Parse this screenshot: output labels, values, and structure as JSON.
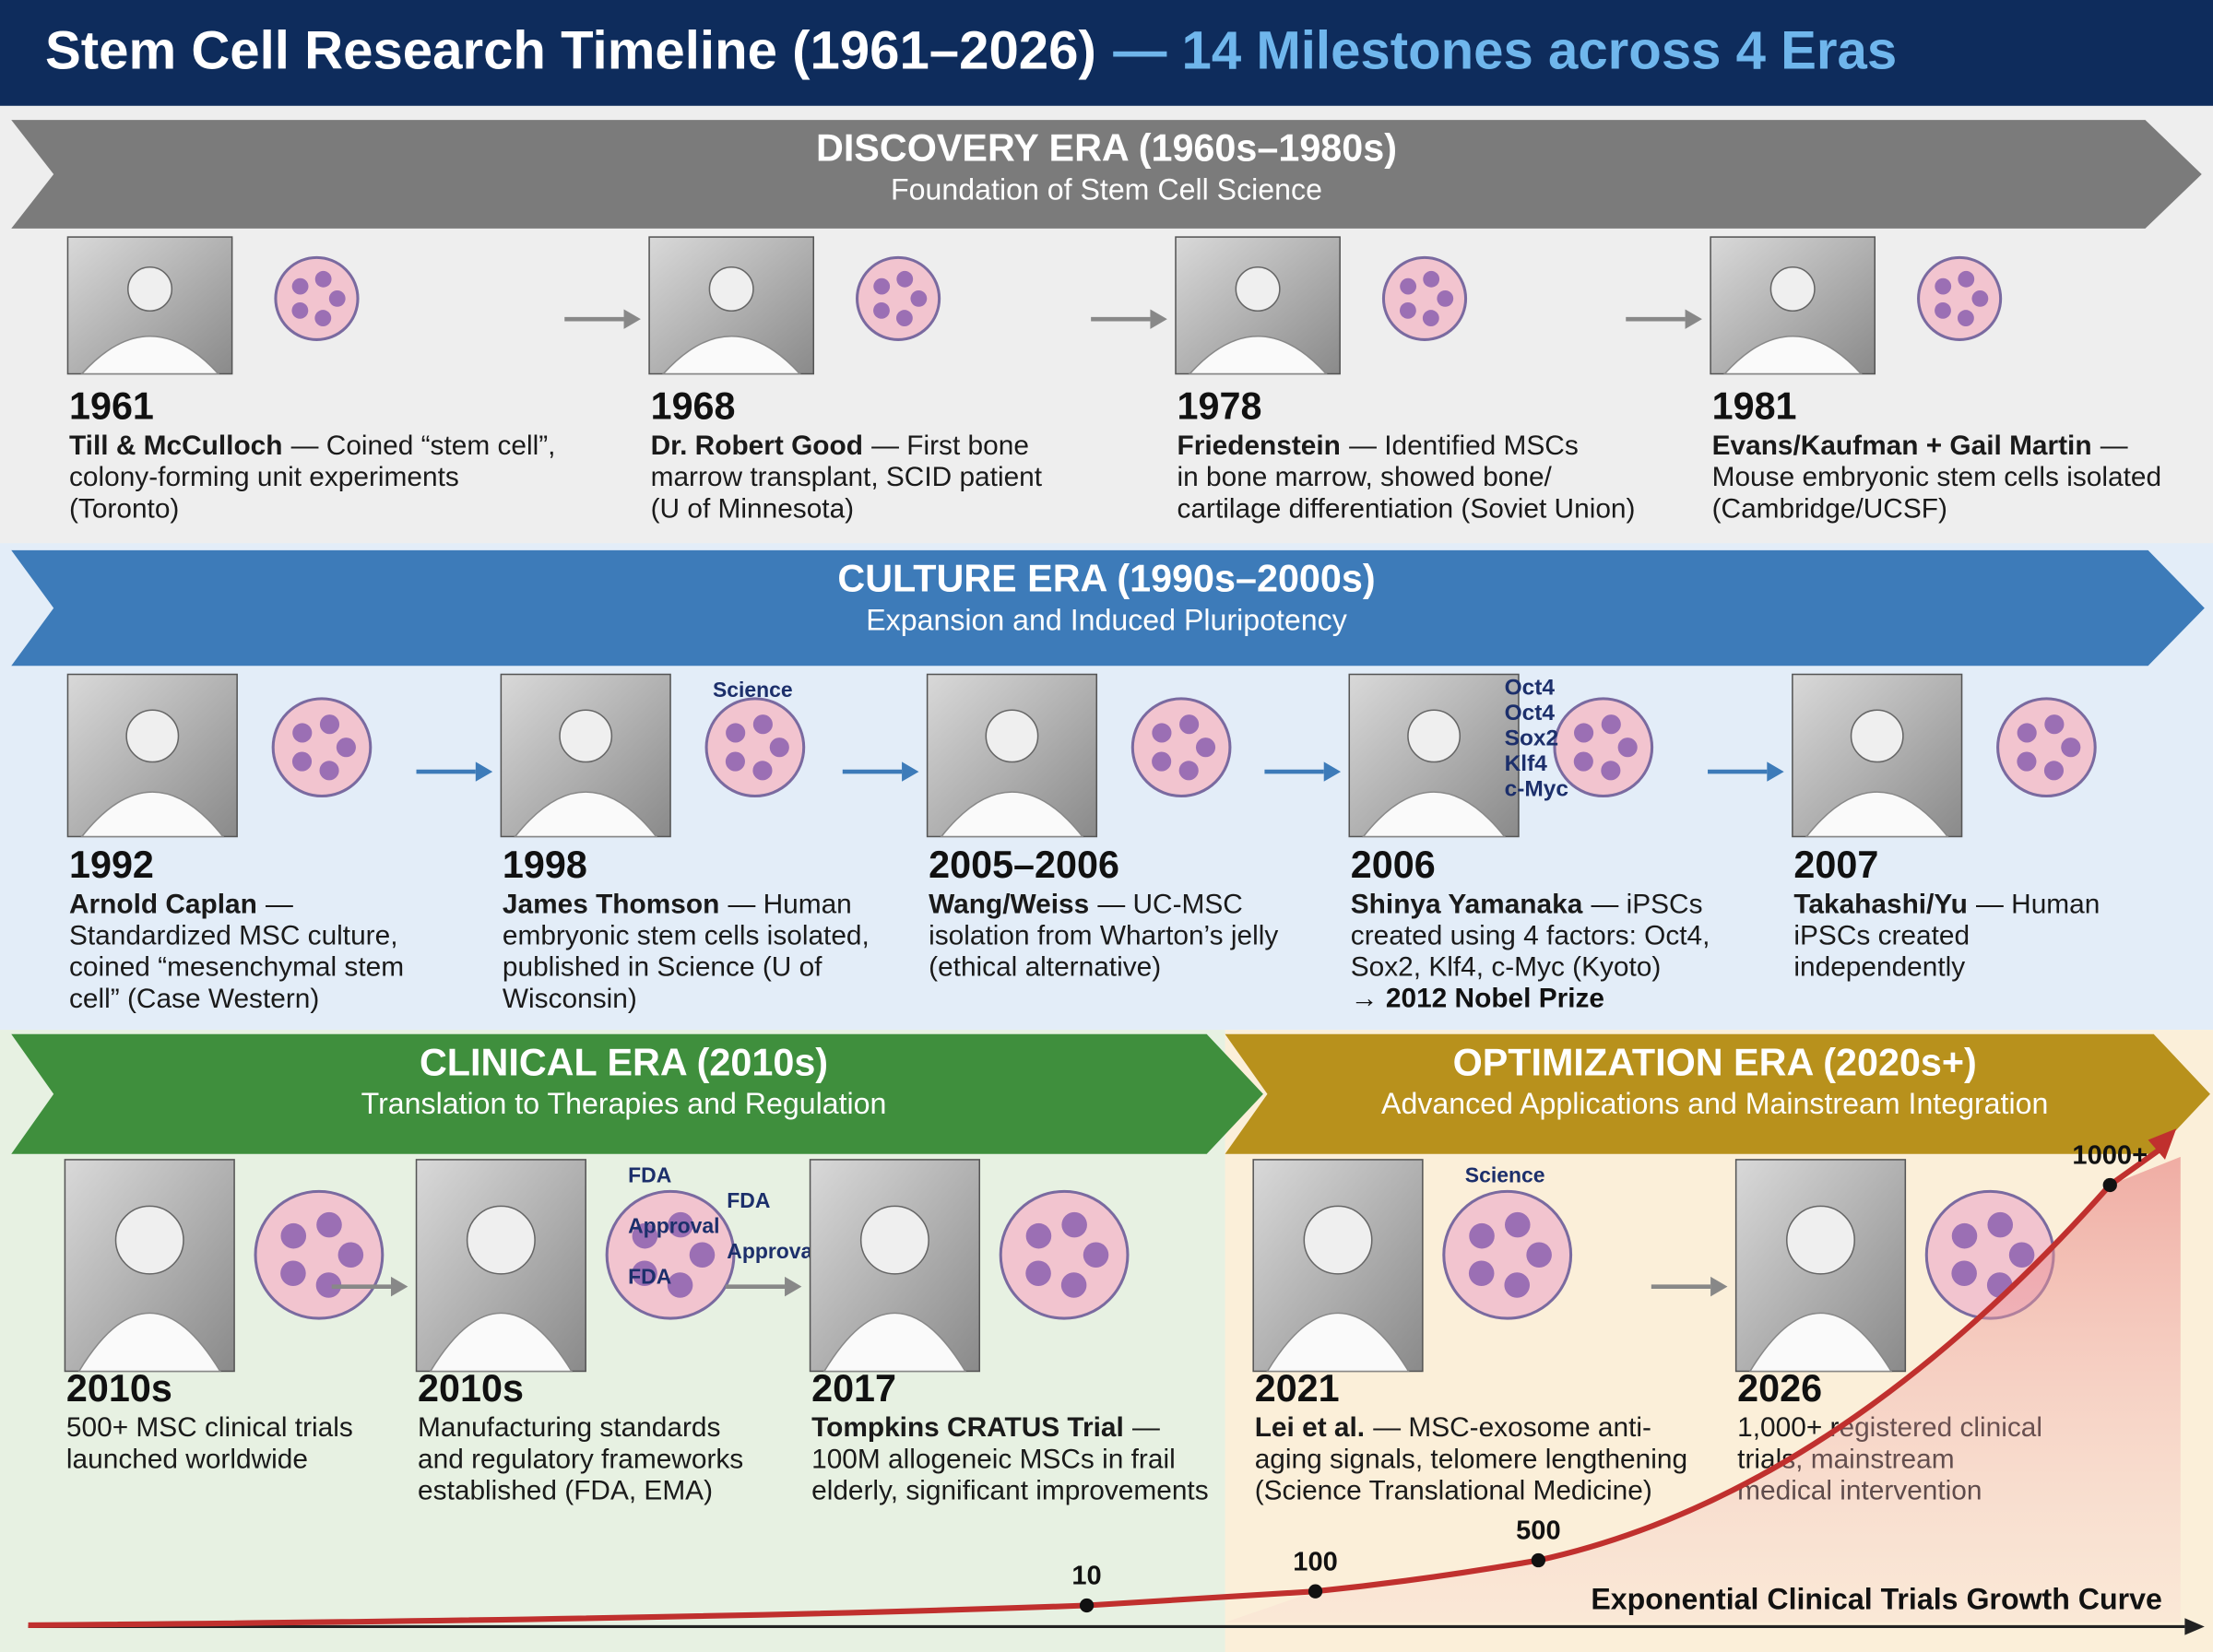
{
  "header": {
    "title": "Stem Cell Research Timeline (1961–2026)",
    "subtitle": "— 14 Milestones across 4 Eras"
  },
  "eras": [
    {
      "name": "DISCOVERY ERA (1960s–1980s)",
      "subtitle": "Foundation of Stem Cell Science",
      "milestones": [
        {
          "year": "1961",
          "who": "Till & McCulloch",
          "lines": [
            "— Coined “stem cell”,",
            "colony-forming unit experiments",
            "(Toronto)"
          ]
        },
        {
          "year": "1968",
          "who": "Dr. Robert Good",
          "lines": [
            "— First bone",
            "marrow transplant, SCID patient",
            "(U of Minnesota)"
          ]
        },
        {
          "year": "1978",
          "who": "Friedenstein",
          "lines": [
            "— Identified MSCs",
            "in bone marrow, showed bone/",
            "cartilage differentiation (Soviet Union)"
          ]
        },
        {
          "year": "1981",
          "who": "Evans/Kaufman + Gail Martin",
          "lines": [
            "—",
            "Mouse embryonic stem cells isolated",
            "(Cambridge/UCSF)"
          ]
        }
      ]
    },
    {
      "name": "CULTURE ERA (1990s–2000s)",
      "subtitle": "Expansion and Induced Pluripotency",
      "milestones": [
        {
          "year": "1992",
          "who": "Arnold Caplan",
          "lines": [
            "—",
            "Standardized MSC culture,",
            "coined “mesenchymal stem",
            "cell” (Case Western)"
          ]
        },
        {
          "year": "1998",
          "who": "James Thomson",
          "lines": [
            "— Human",
            "embryonic stem cells isolated,",
            "published in Science (U of",
            "Wisconsin)"
          ],
          "image_text": [
            "Science"
          ]
        },
        {
          "year": "2005–2006",
          "who": "Wang/Weiss",
          "lines": [
            "— UC-MSC",
            "isolation from Wharton’s jelly",
            "(ethical alternative)"
          ]
        },
        {
          "year": "2006",
          "who": "Shinya Yamanaka",
          "lines": [
            "— iPSCs",
            "created using 4 factors: Oct4,",
            "Sox2, Klf4, c-Myc (Kyoto)"
          ],
          "note": "→ 2012 Nobel Prize",
          "image_text": [
            "Oct4",
            "Oct4",
            "Sox2",
            "Klf4",
            "c-Myc"
          ]
        },
        {
          "year": "2007",
          "who": "Takahashi/Yu",
          "lines": [
            "— Human",
            "iPSCs created",
            "independently"
          ]
        }
      ]
    },
    {
      "name": "CLINICAL ERA (2010s)",
      "subtitle": "Translation to Therapies and Regulation",
      "milestones": [
        {
          "year": "2010s",
          "lines": [
            "500+ MSC clinical trials",
            "launched worldwide"
          ]
        },
        {
          "year": "2010s",
          "lines": [
            "Manufacturing standards",
            "and regulatory frameworks",
            "established (FDA, EMA)"
          ],
          "image_text": [
            "FDA",
            "FDA",
            "Approval",
            "Approval",
            "FDA"
          ]
        },
        {
          "year": "2017",
          "who": "Tompkins CRATUS Trial",
          "lines": [
            "—",
            "100M allogeneic MSCs in frail",
            "elderly, significant improvements"
          ]
        }
      ]
    },
    {
      "name": "OPTIMIZATION ERA (2020s+)",
      "subtitle": "Advanced Applications and Mainstream Integration",
      "milestones": [
        {
          "year": "2021",
          "who": "Lei et al.",
          "lines": [
            "— MSC-exosome anti-",
            "aging signals, telomere lengthening",
            "(Science Translational Medicine)"
          ],
          "image_text": [
            "Science"
          ]
        },
        {
          "year": "2026",
          "lines": [
            "1,000+ registered clinical",
            "trials, mainstream",
            "medical intervention"
          ]
        }
      ]
    }
  ],
  "growth_curve": {
    "label": "Exponential Clinical Trials Growth Curve",
    "points": [
      "10",
      "100",
      "500",
      "1000+"
    ]
  }
}
